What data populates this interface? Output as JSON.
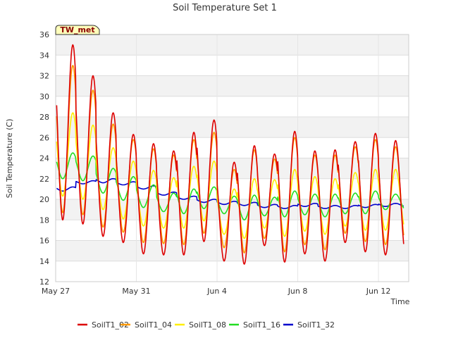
{
  "chart_data": {
    "type": "line",
    "title": "Soil Temperature Set 1",
    "xlabel": "Time",
    "ylabel": "Soil Temperature (C)",
    "site_badge": "TW_met",
    "ylim": [
      12,
      36
    ],
    "yticks": [
      12,
      14,
      16,
      18,
      20,
      22,
      24,
      26,
      28,
      30,
      32,
      34,
      36
    ],
    "xlim": [
      0,
      17.5
    ],
    "xticks": [
      {
        "label": "May 27",
        "day": 0
      },
      {
        "label": "May 31",
        "day": 4
      },
      {
        "label": "Jun 4",
        "day": 8
      },
      {
        "label": "Jun 8",
        "day": 12
      },
      {
        "label": "Jun 12",
        "day": 16
      }
    ],
    "grid": true,
    "legend_position": "bottom",
    "peak_phase_day": 0.85,
    "series": [
      {
        "name": "SoilT1_02",
        "color": "#dd0000",
        "max": [
          35.0,
          32.0,
          28.4,
          26.3,
          25.4,
          24.7,
          26.5,
          27.7,
          23.6,
          25.2,
          24.4,
          26.6,
          24.7,
          24.8,
          25.6,
          26.4,
          25.7
        ],
        "min": [
          18.0,
          17.6,
          16.4,
          15.8,
          14.7,
          14.6,
          14.6,
          15.9,
          14.0,
          13.7,
          15.5,
          13.9,
          14.7,
          14.0,
          15.8,
          14.9,
          14.6
        ]
      },
      {
        "name": "SoilT1_04",
        "color": "#ff9900",
        "max": [
          33.0,
          30.6,
          27.3,
          25.8,
          24.9,
          24.3,
          25.8,
          26.5,
          22.9,
          24.8,
          23.9,
          26.0,
          24.3,
          24.3,
          25.1,
          25.8,
          25.1
        ],
        "min": [
          18.7,
          18.5,
          17.3,
          16.8,
          15.8,
          15.7,
          15.6,
          16.7,
          15.3,
          14.8,
          16.2,
          14.9,
          15.6,
          15.1,
          16.7,
          15.9,
          15.6
        ]
      },
      {
        "name": "SoilT1_08",
        "color": "#ffee00",
        "max": [
          28.4,
          27.2,
          25.0,
          23.7,
          22.8,
          22.1,
          23.2,
          23.7,
          21.0,
          22.0,
          21.9,
          22.9,
          22.2,
          22.0,
          22.6,
          22.9,
          22.9
        ],
        "min": [
          20.3,
          20.0,
          19.0,
          18.1,
          17.4,
          17.2,
          17.2,
          17.9,
          16.6,
          16.2,
          17.2,
          16.4,
          16.9,
          16.6,
          17.4,
          17.0,
          17.0
        ]
      },
      {
        "name": "SoilT1_16",
        "color": "#22dd22",
        "max": [
          24.5,
          24.2,
          23.0,
          22.2,
          21.4,
          20.6,
          21.0,
          21.2,
          20.3,
          20.4,
          20.2,
          20.8,
          20.5,
          20.5,
          20.6,
          20.8,
          20.5
        ],
        "min": [
          22.0,
          21.8,
          20.6,
          19.9,
          19.2,
          18.8,
          18.6,
          19.1,
          18.6,
          18.0,
          18.4,
          18.3,
          18.5,
          18.3,
          18.6,
          18.6,
          19.0
        ]
      },
      {
        "name": "SoilT1_32",
        "color": "#0000cc",
        "max": [
          21.2,
          21.8,
          22.0,
          21.7,
          21.3,
          20.7,
          20.3,
          20.0,
          19.8,
          19.7,
          19.5,
          19.4,
          19.6,
          19.4,
          19.4,
          19.5,
          19.6
        ],
        "min": [
          20.8,
          21.5,
          21.6,
          21.4,
          21.0,
          20.4,
          20.0,
          19.7,
          19.5,
          19.4,
          19.2,
          19.1,
          19.3,
          19.1,
          19.1,
          19.2,
          19.3
        ]
      }
    ]
  }
}
